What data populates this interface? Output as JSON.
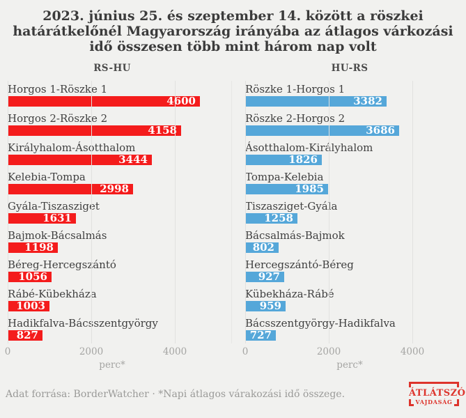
{
  "title": "2023. június 25. és szeptember 14. között a röszkei határátkelőnél Magyarország irányába az átlagos várkozási idő összesen több mint három nap volt",
  "footer": {
    "source": "Adat forrása: BorderWatcher · *Napi átlagos várakozási idő összege."
  },
  "logo": {
    "title": "ÁTLÁTSZÓ",
    "subtitle": "VAJDASÁG"
  },
  "colors": {
    "background": "#F1F1EF",
    "title_text": "#3B3B3B",
    "label_text": "#3F3F3F",
    "axis_text": "#A5A5A3",
    "grid_line": "#E1E1DF",
    "red_bars": "#F41C1C",
    "blue_bars": "#55A7D9",
    "logo_red": "#DD342C"
  },
  "chart_data": [
    {
      "type": "bar",
      "orientation": "horizontal",
      "header": "RS-HU",
      "bar_color": "#F41C1C",
      "categories": [
        "Horgos 1-Röszke 1",
        "Horgos 2-Röszke 2",
        "Királyhalom-Ásotthalom",
        "Kelebia-Tompa",
        "Gyála-Tiszasziget",
        "Bajmok-Bácsalmás",
        "Béreg-Hercegszántó",
        "Rábé-Kübekháza",
        "Hadikfalva-Bácsszentgyörgy"
      ],
      "values": [
        4600,
        4158,
        3444,
        2998,
        1631,
        1198,
        1056,
        1003,
        827
      ],
      "x_ticks": [
        0,
        2000,
        4000
      ],
      "xlim": [
        0,
        5400
      ],
      "xlabel": "perc*",
      "grid": true,
      "value_labels": "inside-end"
    },
    {
      "type": "bar",
      "orientation": "horizontal",
      "header": "HU-RS",
      "bar_color": "#55A7D9",
      "categories": [
        "Röszke 1-Horgos 1",
        "Röszke 2-Horgos 2",
        "Ásotthalom-Királyhalom",
        "Tompa-Kelebia",
        "Tiszasziget-Gyála",
        "Bácsalmás-Bajmok",
        "Hercegszántó-Béreg",
        "Kübekháza-Rábé",
        "Bácsszentgyörgy-Hadikfalva"
      ],
      "values": [
        3382,
        3686,
        1826,
        1985,
        1258,
        802,
        927,
        959,
        727
      ],
      "x_ticks": [
        0,
        2000,
        4000
      ],
      "xlim": [
        0,
        5400
      ],
      "xlabel": "perc*",
      "grid": true,
      "value_labels": "inside-end"
    }
  ]
}
